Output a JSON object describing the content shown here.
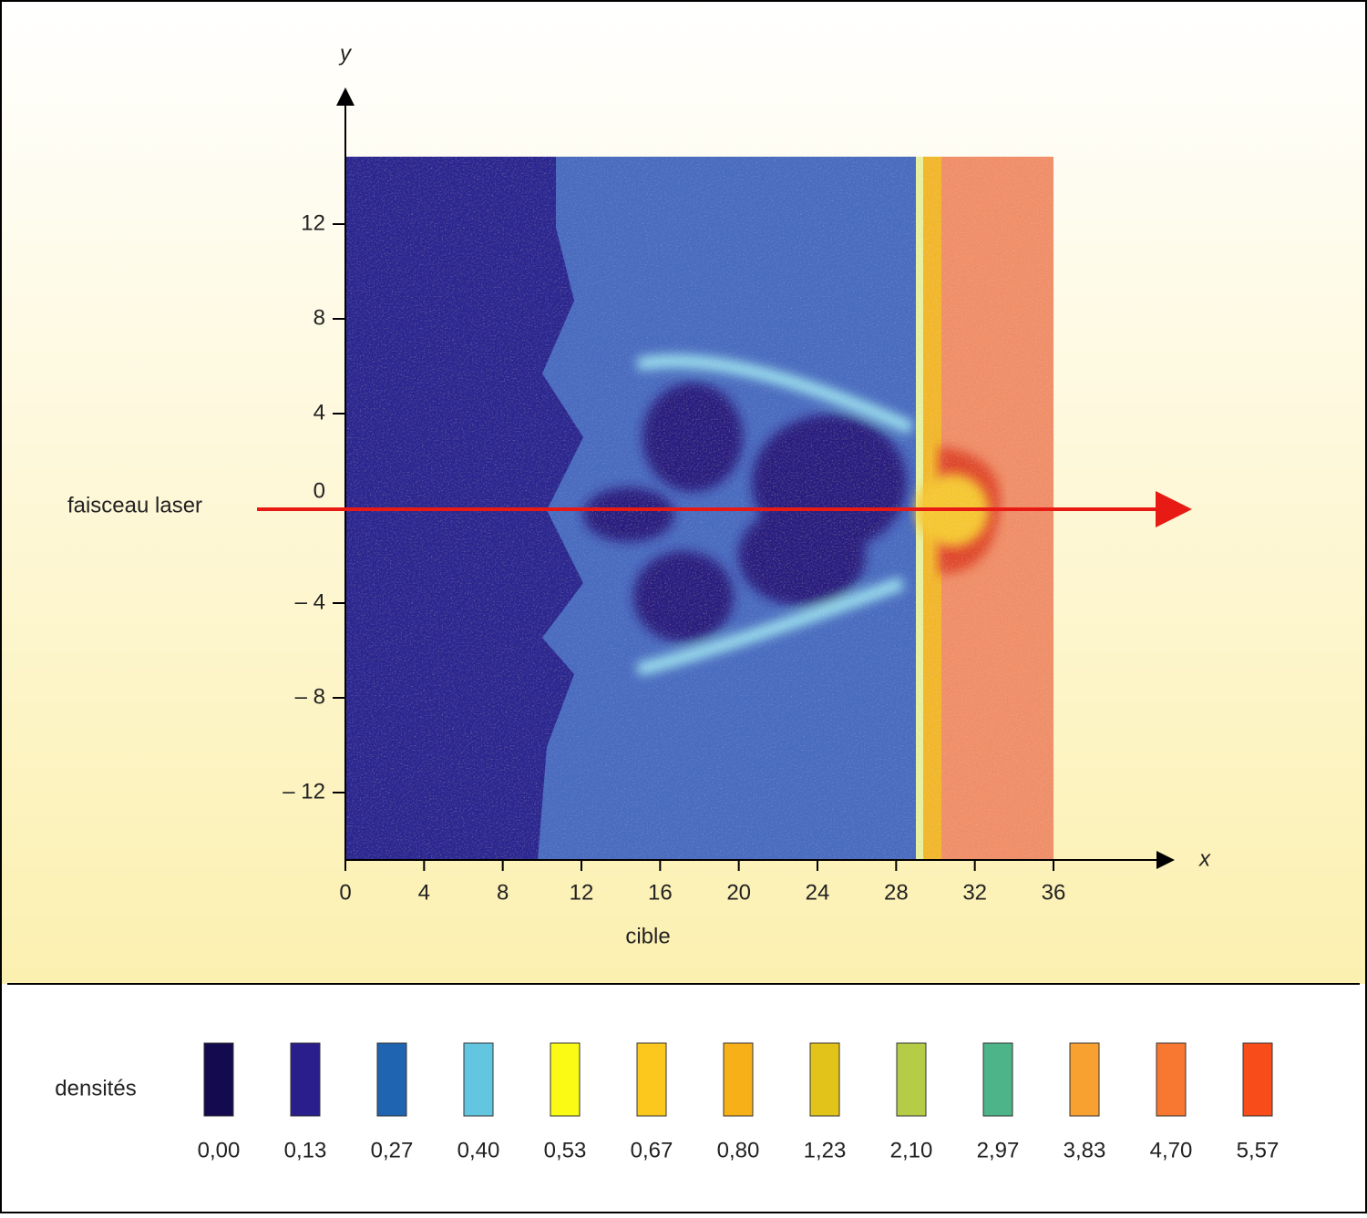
{
  "chart_data": {
    "type": "heatmap",
    "x_label": "x",
    "y_label": "y",
    "xlim": [
      0,
      36
    ],
    "xticks": [
      0,
      4,
      8,
      12,
      16,
      20,
      24,
      28,
      32,
      36
    ],
    "ylim": [
      -15,
      15
    ],
    "yticks": [
      {
        "value": -12,
        "label": "– 12"
      },
      {
        "value": -8,
        "label": "– 8"
      },
      {
        "value": -4,
        "label": "– 4"
      },
      0,
      4,
      8,
      12
    ],
    "annotations": {
      "beam": "faisceau laser",
      "target": "cible"
    },
    "legend": {
      "title": "densités",
      "items": [
        {
          "color": "#140a50",
          "label": "0,00"
        },
        {
          "color": "#2a1e8c",
          "label": "0,13"
        },
        {
          "color": "#1f64b0",
          "label": "0,27"
        },
        {
          "color": "#63c6e0",
          "label": "0,40"
        },
        {
          "color": "#fafa14",
          "label": "0,53"
        },
        {
          "color": "#fcc81e",
          "label": "0,67"
        },
        {
          "color": "#f8b018",
          "label": "0,80"
        },
        {
          "color": "#e2c31a",
          "label": "1,23"
        },
        {
          "color": "#b4cc46",
          "label": "2,10"
        },
        {
          "color": "#4cb488",
          "label": "2,97"
        },
        {
          "color": "#f8a030",
          "label": "3,83"
        },
        {
          "color": "#f87832",
          "label": "4,70"
        },
        {
          "color": "#f84c1a",
          "label": "5,57"
        }
      ]
    }
  }
}
